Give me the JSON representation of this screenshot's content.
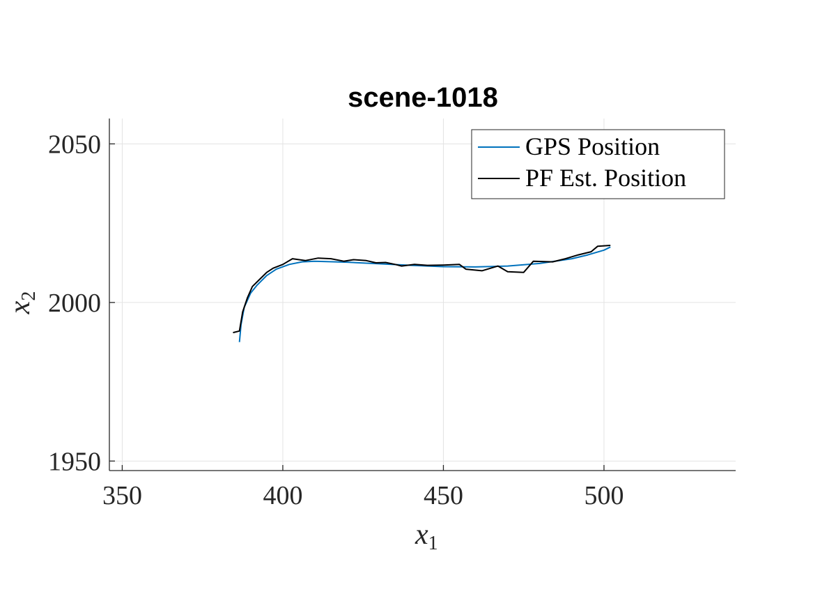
{
  "chart_data": {
    "type": "line",
    "title": "scene-1018",
    "xlabel": "x",
    "xlabel_sub": "1",
    "ylabel": "x",
    "ylabel_sub": "2",
    "xlim": [
      346,
      541
    ],
    "ylim": [
      1947,
      2058
    ],
    "xticks": [
      350,
      400,
      450,
      500
    ],
    "yticks": [
      1950,
      2000,
      2050
    ],
    "grid": true,
    "legend_position": "top-right",
    "series": [
      {
        "name": "GPS Position",
        "color": "#0072BD",
        "x": [
          386.5,
          387,
          388,
          390,
          392,
          395,
          398,
          402,
          406,
          410,
          420,
          430,
          440,
          450,
          460,
          470,
          480,
          490,
          495,
          500,
          502
        ],
        "y": [
          1987.5,
          1993,
          1998.5,
          2003,
          2005.5,
          2008.5,
          2010.5,
          2012,
          2012.8,
          2013,
          2012.7,
          2012.2,
          2011.7,
          2011.3,
          2011.2,
          2011.5,
          2012.3,
          2013.8,
          2015,
          2016.5,
          2017.5
        ]
      },
      {
        "name": "PF Est. Position",
        "color": "#000000",
        "x": [
          384.5,
          386.5,
          387.5,
          389,
          390.5,
          392.5,
          395,
          397,
          400,
          403,
          407,
          411,
          415,
          419,
          422,
          426,
          429,
          432,
          435,
          437,
          441,
          445,
          450,
          455,
          457,
          462,
          467,
          470,
          475,
          478,
          484,
          488,
          492,
          496,
          498,
          502
        ],
        "y": [
          1990.5,
          1991,
          1997,
          2001.5,
          2005,
          2007,
          2009.5,
          2010.8,
          2012,
          2013.8,
          2013.2,
          2014,
          2013.8,
          2013,
          2013.5,
          2013.2,
          2012.5,
          2012.6,
          2012,
          2011.5,
          2012,
          2011.7,
          2011.8,
          2012,
          2010.5,
          2010,
          2011.5,
          2009.7,
          2009.5,
          2013,
          2012.8,
          2013.8,
          2015,
          2016,
          2017.7,
          2018
        ]
      }
    ]
  }
}
